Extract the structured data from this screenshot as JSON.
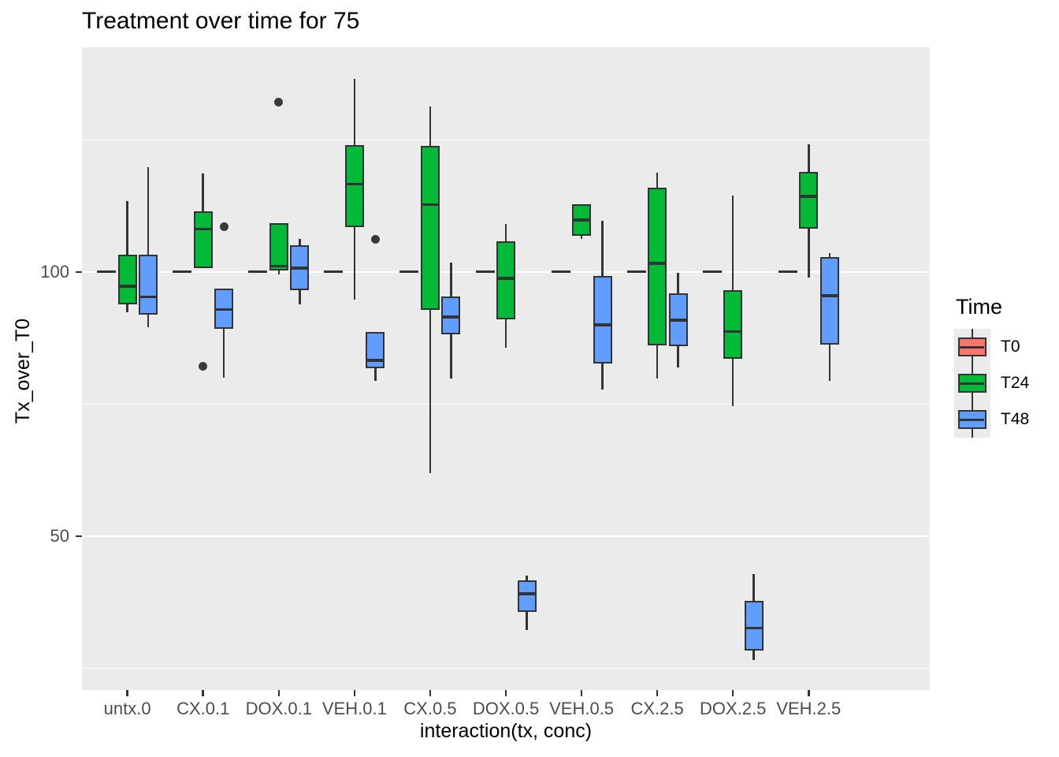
{
  "chart_data": {
    "type": "boxplot",
    "title": "Treatment over time for 75",
    "xlabel": "interaction(tx, conc)",
    "ylabel": "Tx_over_T0",
    "legend_title": "Time",
    "legend_position": "right",
    "panel_background": "#EBEBEB",
    "gridline_color": "#FFFFFF",
    "box_outline_color": "#333333",
    "ylim": [
      20.9,
      142.5
    ],
    "yticks": [
      50,
      100
    ],
    "minor_gridlines": [
      25,
      75,
      125
    ],
    "categories": [
      "untx.0",
      "CX.0.1",
      "DOX.0.1",
      "VEH.0.1",
      "CX.0.5",
      "DOX.0.5",
      "VEH.0.5",
      "CX.2.5",
      "DOX.2.5",
      "VEH.2.5"
    ],
    "series": [
      {
        "name": "T0",
        "color": "#F8766D",
        "boxes": [
          {
            "lo": 100,
            "q1": 100,
            "med": 100,
            "q3": 100,
            "hi": 100,
            "out": []
          },
          {
            "lo": 100,
            "q1": 100,
            "med": 100,
            "q3": 100,
            "hi": 100,
            "out": []
          },
          {
            "lo": 100,
            "q1": 100,
            "med": 100,
            "q3": 100,
            "hi": 100,
            "out": []
          },
          {
            "lo": 100,
            "q1": 100,
            "med": 100,
            "q3": 100,
            "hi": 100,
            "out": []
          },
          {
            "lo": 100,
            "q1": 100,
            "med": 100,
            "q3": 100,
            "hi": 100,
            "out": []
          },
          {
            "lo": 100,
            "q1": 100,
            "med": 100,
            "q3": 100,
            "hi": 100,
            "out": []
          },
          {
            "lo": 100,
            "q1": 100,
            "med": 100,
            "q3": 100,
            "hi": 100,
            "out": []
          },
          {
            "lo": 100,
            "q1": 100,
            "med": 100,
            "q3": 100,
            "hi": 100,
            "out": []
          },
          {
            "lo": 100,
            "q1": 100,
            "med": 100,
            "q3": 100,
            "hi": 100,
            "out": []
          },
          {
            "lo": 100,
            "q1": 100,
            "med": 100,
            "q3": 100,
            "hi": 100,
            "out": []
          }
        ]
      },
      {
        "name": "T24",
        "color": "#00BA38",
        "boxes": [
          {
            "lo": 92.3,
            "q1": 93.9,
            "med": 97.3,
            "q3": 103.3,
            "hi": 113.4,
            "out": []
          },
          {
            "lo": 100.7,
            "q1": 100.7,
            "med": 108.1,
            "q3": 111.4,
            "hi": 118.7,
            "out": [
              82.1
            ]
          },
          {
            "lo": 99.5,
            "q1": 100.3,
            "med": 101.1,
            "q3": 109.3,
            "hi": 109.3,
            "out": [
              132.2
            ]
          },
          {
            "lo": 94.8,
            "q1": 108.5,
            "med": 116.6,
            "q3": 124.0,
            "hi": 136.6,
            "out": []
          },
          {
            "lo": 62.0,
            "q1": 92.8,
            "med": 112.7,
            "q3": 123.9,
            "hi": 131.3,
            "out": []
          },
          {
            "lo": 85.7,
            "q1": 91.0,
            "med": 98.8,
            "q3": 105.8,
            "hi": 109.1,
            "out": []
          },
          {
            "lo": 106.2,
            "q1": 106.8,
            "med": 109.8,
            "q3": 112.8,
            "hi": 112.8,
            "out": []
          },
          {
            "lo": 79.9,
            "q1": 86.1,
            "med": 101.6,
            "q3": 116.0,
            "hi": 118.8,
            "out": []
          },
          {
            "lo": 74.6,
            "q1": 83.6,
            "med": 88.7,
            "q3": 96.5,
            "hi": 114.4,
            "out": []
          },
          {
            "lo": 98.9,
            "q1": 108.2,
            "med": 114.3,
            "q3": 118.9,
            "hi": 124.1,
            "out": []
          }
        ]
      },
      {
        "name": "T48",
        "color": "#619CFF",
        "boxes": [
          {
            "lo": 89.6,
            "q1": 91.9,
            "med": 95.3,
            "q3": 103.2,
            "hi": 119.8,
            "out": []
          },
          {
            "lo": 80.0,
            "q1": 89.3,
            "med": 92.9,
            "q3": 96.9,
            "hi": 96.9,
            "out": [
              108.6
            ]
          },
          {
            "lo": 93.8,
            "q1": 96.5,
            "med": 100.7,
            "q3": 105.0,
            "hi": 106.3,
            "out": []
          },
          {
            "lo": 79.4,
            "q1": 81.8,
            "med": 83.3,
            "q3": 88.7,
            "hi": 88.7,
            "out": [
              106.1
            ]
          },
          {
            "lo": 79.9,
            "q1": 88.2,
            "med": 91.5,
            "q3": 95.3,
            "hi": 101.7,
            "out": []
          },
          {
            "lo": 32.3,
            "q1": 35.6,
            "med": 39.1,
            "q3": 41.6,
            "hi": 42.6,
            "out": []
          },
          {
            "lo": 77.7,
            "q1": 82.7,
            "med": 90.0,
            "q3": 99.3,
            "hi": 109.7,
            "out": []
          },
          {
            "lo": 81.9,
            "q1": 85.9,
            "med": 90.9,
            "q3": 96.0,
            "hi": 99.9,
            "out": []
          },
          {
            "lo": 26.6,
            "q1": 28.4,
            "med": 32.6,
            "q3": 37.7,
            "hi": 42.8,
            "out": []
          },
          {
            "lo": 79.4,
            "q1": 86.3,
            "med": 95.5,
            "q3": 102.8,
            "hi": 103.5,
            "out": []
          }
        ]
      }
    ]
  }
}
